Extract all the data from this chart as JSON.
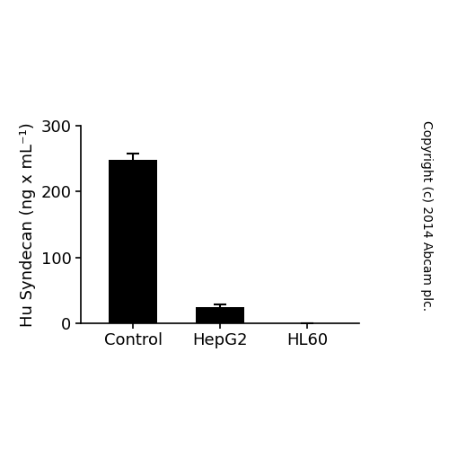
{
  "categories": [
    "Control",
    "HepG2",
    "HL60"
  ],
  "values": [
    248,
    25,
    0
  ],
  "errors": [
    10,
    3,
    0
  ],
  "bar_color": "#000000",
  "bar_width": 0.55,
  "ylim": [
    0,
    300
  ],
  "yticks": [
    0,
    100,
    200,
    300
  ],
  "ylabel": "Hu Syndecan (ng x mL⁻¹)",
  "copyright_text": "Copyright (c) 2014 Abcam plc.",
  "background_color": "#ffffff",
  "tick_fontsize": 13,
  "label_fontsize": 13,
  "copyright_fontsize": 10
}
